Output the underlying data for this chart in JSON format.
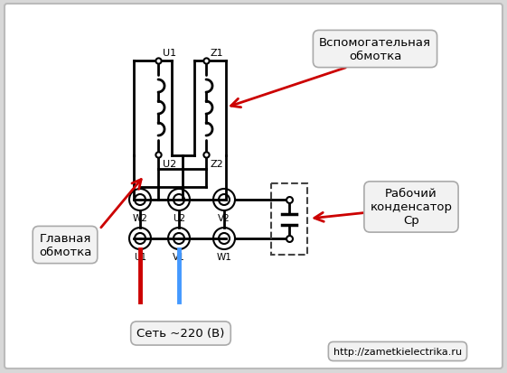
{
  "bg_color": "#d8d8d8",
  "diagram_bg": "#ffffff",
  "coil_color": "#000000",
  "red_wire": "#cc0000",
  "blue_wire": "#4499ff",
  "arrow_color": "#cc0000",
  "box_bg": "#f5f5f5",
  "box_edge": "#aaaaaa",
  "text_glavnaya": "Главная\nобмотка",
  "text_vspom": "Вспомогательная\nобмотка",
  "text_rabochiy": "Рабочий\nконденсатор\nСр",
  "text_set": "Сеть ~220 (В)",
  "text_url": "http://zametkielectrika.ru",
  "label_U1_top": "U1",
  "label_Z1_top": "Z1",
  "label_U2": "U2",
  "label_Z2": "Z2",
  "label_W2": "W2",
  "label_U2b": "U2",
  "label_V2": "V2",
  "label_U1b": "U1",
  "label_V1": "V1",
  "label_W1": "W1"
}
